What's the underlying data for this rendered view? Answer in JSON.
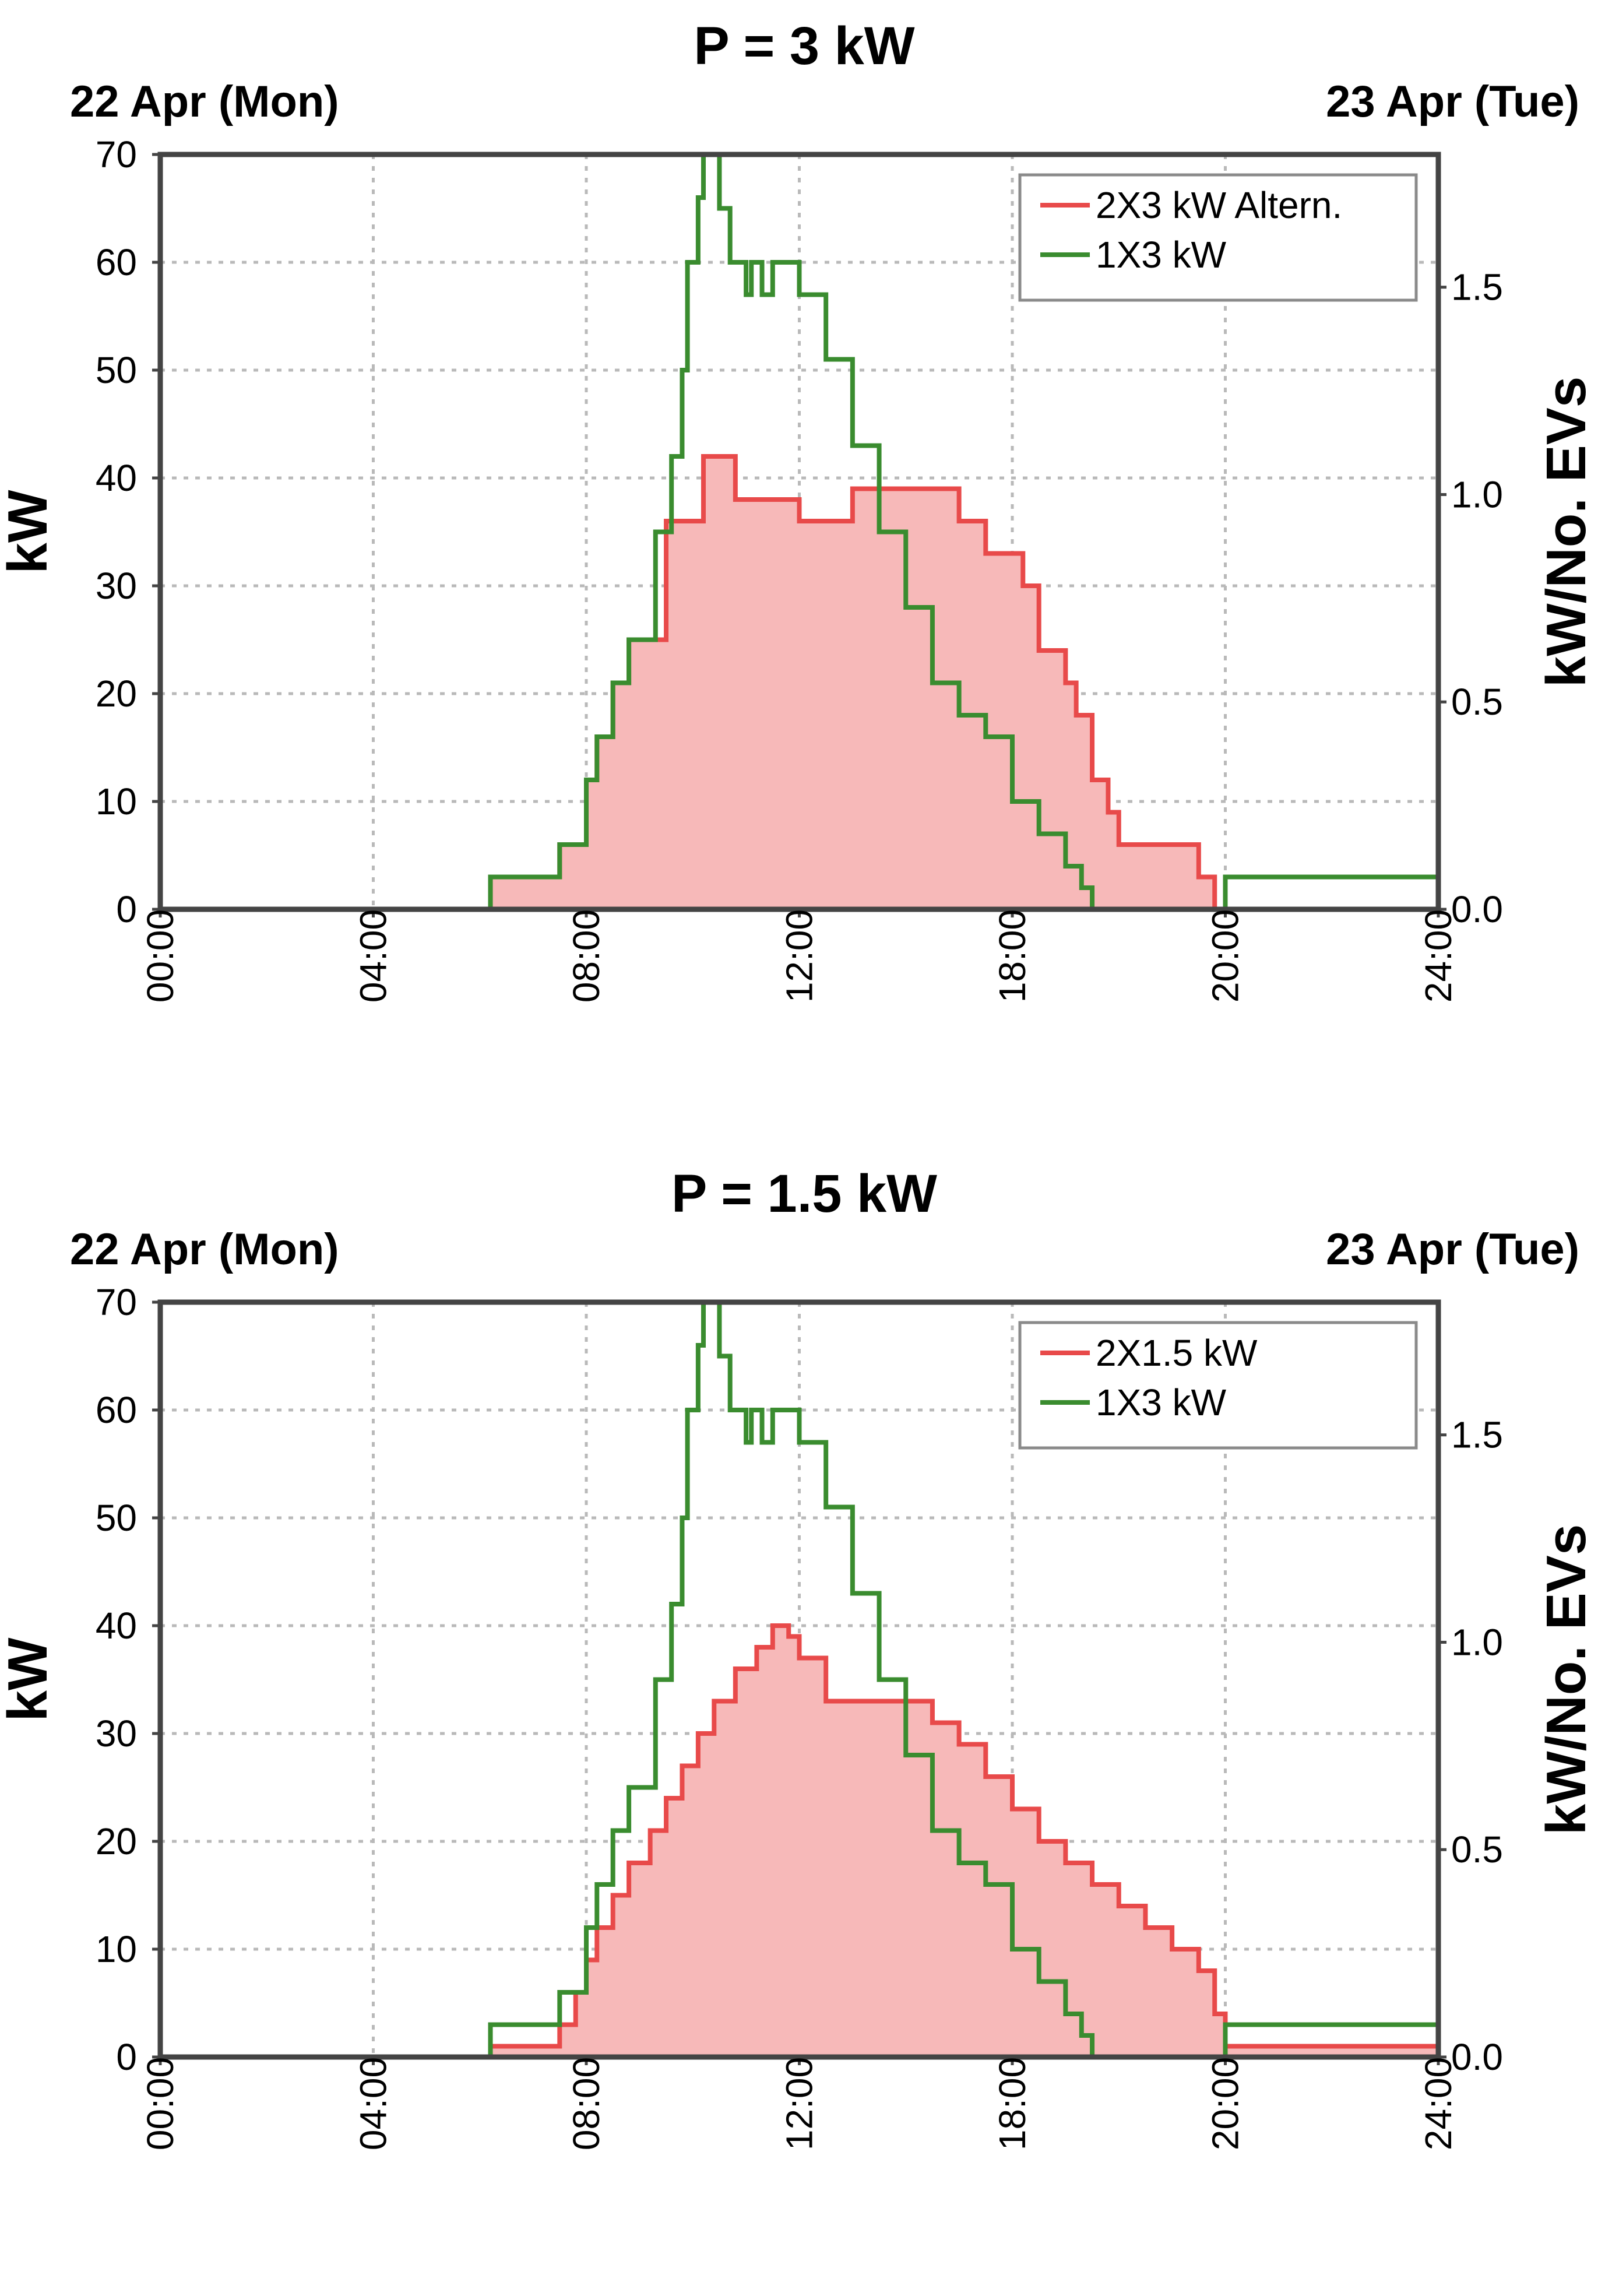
{
  "colors": {
    "red_line": "#e84a4a",
    "red_fill": "#f7b9b9",
    "green_line": "#3a8c2f",
    "grid": "#b9b9b9",
    "frame": "#444444"
  },
  "chart_data": [
    {
      "type": "line",
      "title": "P = 3 kW",
      "date_left": "22 Apr (Mon)",
      "date_right": "23 Apr (Tue)",
      "ylabel_left": "kW",
      "ylabel_right": "kW/No. EVs",
      "ylim": [
        0,
        70
      ],
      "y_right_lim": [
        0,
        1.82
      ],
      "y_ticks": [
        "70",
        "60",
        "50",
        "40",
        "30",
        "20",
        "10",
        "0"
      ],
      "y_right_ticks": [
        "1.5",
        "1.0",
        "0.5",
        "0.0"
      ],
      "x_ticks": [
        "00:00",
        "04:00",
        "08:00",
        "12:00",
        "18:00",
        "20:00",
        "24:00"
      ],
      "legend": [
        "2X3 kW Altern.",
        "1X3 kW"
      ],
      "series": [
        {
          "name": "2X3 kW Altern.",
          "filled": true,
          "x": [
            0,
            6,
            6.2,
            7,
            7.5,
            7.8,
            8,
            8.2,
            8.5,
            8.8,
            9.5,
            10.2,
            10.5,
            10.8,
            12,
            13,
            14.2,
            14.5,
            15,
            15.5,
            16,
            16.2,
            16.5,
            17,
            17.2,
            17.5,
            17.8,
            18,
            18.2,
            18.5,
            19.5,
            19.8,
            24
          ],
          "y": [
            0,
            0,
            3,
            3,
            6,
            6,
            12,
            16,
            21,
            25,
            36,
            42,
            42,
            38,
            36,
            39,
            39,
            39,
            36,
            33,
            33,
            30,
            24,
            21,
            18,
            12,
            9,
            6,
            6,
            6,
            3,
            0,
            0
          ]
        },
        {
          "name": "1X3 kW",
          "filled": false,
          "x": [
            0,
            6,
            6.2,
            7,
            7.5,
            7.8,
            8,
            8.2,
            8.5,
            8.8,
            9.3,
            9.6,
            9.8,
            9.9,
            10.1,
            10.2,
            10.5,
            10.7,
            11,
            11.1,
            11.3,
            11.5,
            12,
            12.5,
            13,
            13.5,
            14,
            14.5,
            15,
            15.5,
            16,
            16.5,
            17,
            17.3,
            17.5,
            17.8,
            19.8,
            20,
            24
          ],
          "y": [
            0,
            0,
            3,
            3,
            6,
            6,
            12,
            16,
            21,
            25,
            35,
            42,
            50,
            60,
            66,
            70,
            65,
            60,
            57,
            60,
            57,
            60,
            57,
            51,
            43,
            35,
            28,
            21,
            18,
            16,
            10,
            7,
            4,
            2,
            0,
            0,
            0,
            3,
            3
          ]
        }
      ]
    },
    {
      "type": "line",
      "title": "P = 1.5 kW",
      "date_left": "22 Apr (Mon)",
      "date_right": "23 Apr (Tue)",
      "ylabel_left": "kW",
      "ylabel_right": "kW/No. EVs",
      "ylim": [
        0,
        70
      ],
      "y_right_lim": [
        0,
        1.82
      ],
      "y_ticks": [
        "70",
        "60",
        "50",
        "40",
        "30",
        "20",
        "10",
        "0"
      ],
      "y_right_ticks": [
        "1.5",
        "1.0",
        "0.5",
        "0.0"
      ],
      "x_ticks": [
        "00:00",
        "04:00",
        "08:00",
        "12:00",
        "18:00",
        "20:00",
        "24:00"
      ],
      "legend": [
        "2X1.5 kW",
        "1X3 kW"
      ],
      "series": [
        {
          "name": "2X1.5 kW",
          "filled": true,
          "x": [
            0,
            6,
            6.2,
            7,
            7.5,
            7.8,
            8,
            8.2,
            8.5,
            8.8,
            9.2,
            9.5,
            9.8,
            10.1,
            10.4,
            10.8,
            11.2,
            11.5,
            11.8,
            12,
            12.5,
            13,
            14,
            14.5,
            15,
            15.5,
            16,
            16.5,
            17,
            17.5,
            18,
            18.5,
            19,
            19.5,
            19.8,
            20,
            24
          ],
          "y": [
            0,
            0,
            1,
            1,
            3,
            6,
            9,
            12,
            15,
            18,
            21,
            24,
            27,
            30,
            33,
            36,
            38,
            40,
            39,
            37,
            33,
            33,
            33,
            31,
            29,
            26,
            23,
            20,
            18,
            16,
            14,
            12,
            10,
            8,
            4,
            1,
            1
          ]
        },
        {
          "name": "1X3 kW",
          "filled": false,
          "x": [
            0,
            6,
            6.2,
            7,
            7.5,
            7.8,
            8,
            8.2,
            8.5,
            8.8,
            9.3,
            9.6,
            9.8,
            9.9,
            10.1,
            10.2,
            10.5,
            10.7,
            11,
            11.1,
            11.3,
            11.5,
            12,
            12.5,
            13,
            13.5,
            14,
            14.5,
            15,
            15.5,
            16,
            16.5,
            17,
            17.3,
            17.5,
            17.8,
            19.8,
            20,
            24
          ],
          "y": [
            0,
            0,
            3,
            3,
            6,
            6,
            12,
            16,
            21,
            25,
            35,
            42,
            50,
            60,
            66,
            70,
            65,
            60,
            57,
            60,
            57,
            60,
            57,
            51,
            43,
            35,
            28,
            21,
            18,
            16,
            10,
            7,
            4,
            2,
            0,
            0,
            0,
            3,
            3
          ]
        }
      ]
    }
  ]
}
